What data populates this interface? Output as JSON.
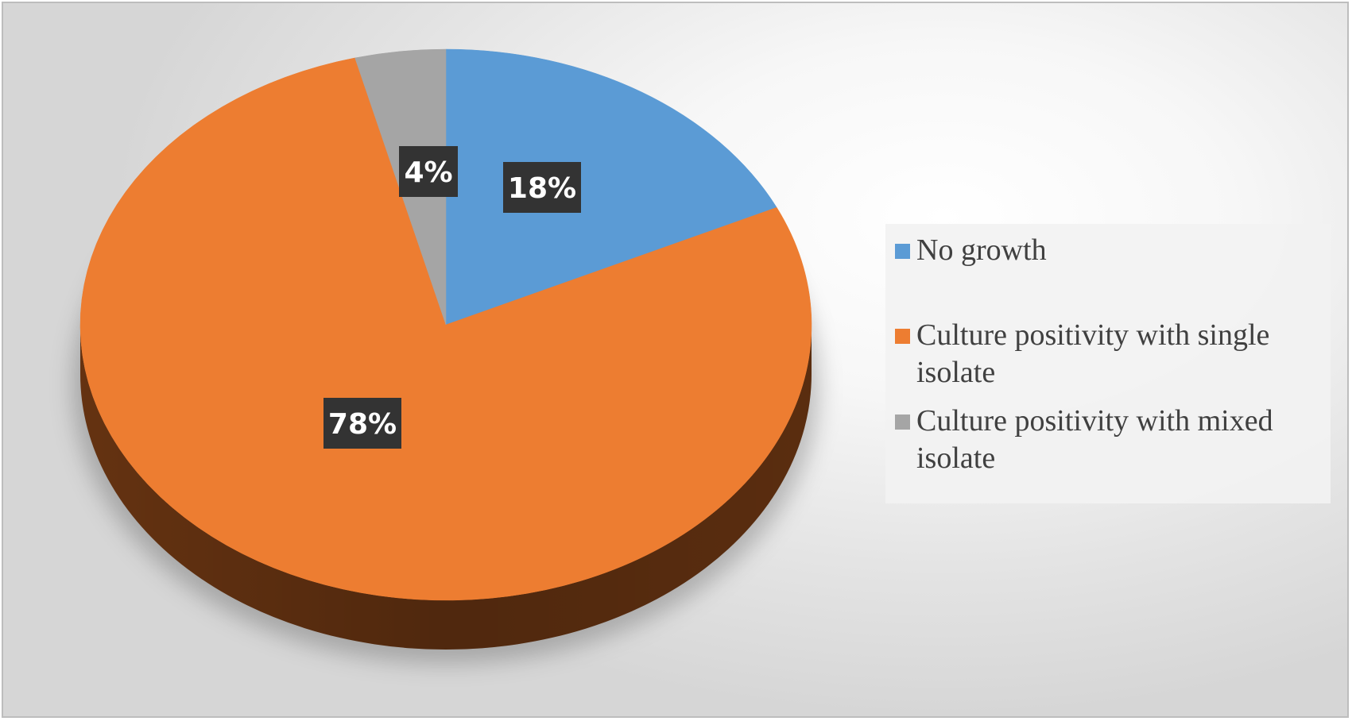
{
  "chart_data": {
    "type": "pie",
    "title": "",
    "style": "3d",
    "legend_position": "right",
    "categories": [
      "No growth",
      "Culture positivity with single isolate",
      "Culture positivity with mixed isolate"
    ],
    "values": [
      18,
      78,
      4
    ],
    "data_labels": [
      "18%",
      "78%",
      "4%"
    ],
    "colors": [
      "#5b9bd5",
      "#ed7d31",
      "#a5a5a5"
    ],
    "side_colors": [
      "#2e5f8c",
      "#6a3512",
      "#6e6e6e"
    ]
  }
}
